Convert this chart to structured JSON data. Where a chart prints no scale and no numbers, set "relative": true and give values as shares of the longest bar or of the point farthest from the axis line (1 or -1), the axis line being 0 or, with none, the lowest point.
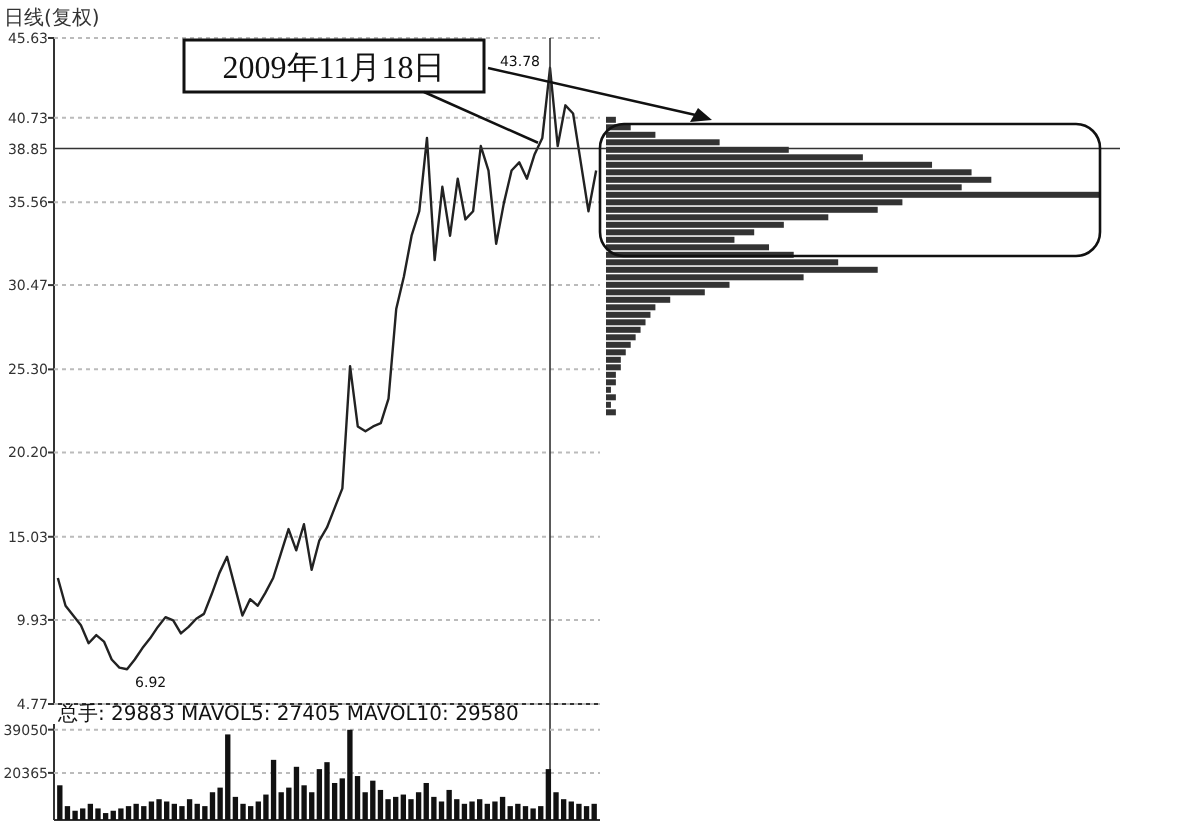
{
  "chart_data": [
    {
      "type": "line",
      "title": "日线(复权)",
      "categories": [
        null,
        null,
        null,
        null,
        null,
        null,
        null,
        null,
        null,
        null,
        null,
        null,
        null,
        null,
        null,
        null,
        null,
        null,
        null,
        null,
        null,
        null,
        null,
        null,
        null,
        null,
        null,
        null,
        null,
        null,
        null,
        null,
        null,
        null,
        null,
        null,
        null,
        null,
        null,
        null,
        null,
        null,
        null,
        null,
        null,
        null,
        null,
        null,
        null,
        null,
        null,
        null,
        null,
        null,
        null,
        null,
        null,
        null,
        null,
        null,
        null,
        null,
        null,
        null,
        null,
        null,
        null,
        null,
        null,
        null,
        null
      ],
      "series": [
        {
          "color": "#222222",
          "values": [
            12.5,
            10.8,
            10.2,
            9.6,
            8.5,
            9.0,
            8.6,
            7.5,
            7.0,
            6.9,
            7.5,
            8.2,
            8.8,
            9.5,
            10.1,
            9.9,
            9.1,
            9.5,
            10.0,
            10.3,
            11.5,
            12.8,
            13.8,
            12.0,
            10.2,
            11.2,
            10.8,
            11.6,
            12.5,
            14.0,
            15.5,
            14.2,
            15.8,
            13.0,
            14.8,
            15.6,
            16.8,
            18.0,
            25.5,
            21.8,
            21.5,
            21.8,
            22.0,
            23.5,
            29.0,
            31.0,
            33.5,
            35.0,
            39.5,
            32.0,
            36.5,
            33.5,
            37.0,
            34.5,
            35.0,
            39.0,
            37.5,
            33.0,
            35.5,
            37.5,
            38.0,
            37.0,
            38.5,
            39.5,
            43.8,
            39.0,
            41.5,
            41.0,
            38.0,
            35.0,
            37.5
          ]
        }
      ],
      "ylim": [
        4.77,
        45.63
      ],
      "yticks": [
        4.77,
        9.93,
        15.03,
        {
          "value": 20.2,
          "label": "20.20"
        },
        {
          "value": 25.3,
          "label": "25.30"
        },
        30.47,
        35.56,
        40.73,
        45.63
      ],
      "grid": "y",
      "ref_lines": [
        {
          "axis": "y",
          "value": 38.85,
          "label": "38.85"
        }
      ],
      "annotations": [
        "43.78",
        "6.92",
        "2009年11月18日"
      ]
    },
    {
      "type": "bar",
      "orientation": "horizontal",
      "relative": true,
      "color": "#333333",
      "categories": [
        null,
        null,
        null,
        null,
        null,
        null,
        null,
        null,
        null,
        null,
        null,
        null,
        null,
        null,
        null,
        null,
        null,
        null,
        null,
        null,
        null,
        null,
        null,
        null,
        null,
        null,
        null,
        null,
        null,
        null,
        null,
        null,
        null,
        null,
        null,
        null,
        null,
        null,
        null,
        null
      ],
      "values": [
        0.02,
        0.05,
        0.1,
        0.23,
        0.37,
        0.52,
        0.66,
        0.74,
        0.78,
        0.72,
        1.0,
        0.6,
        0.55,
        0.45,
        0.36,
        0.3,
        0.26,
        0.33,
        0.38,
        0.47,
        0.55,
        0.4,
        0.25,
        0.2,
        0.13,
        0.1,
        0.09,
        0.08,
        0.07,
        0.06,
        0.05,
        0.04,
        0.03,
        0.03,
        0.02,
        0.02,
        0.01,
        0.02,
        0.01,
        0.02
      ]
    },
    {
      "type": "bar",
      "color": "#111111",
      "categories": [
        null,
        null,
        null,
        null,
        null,
        null,
        null,
        null,
        null,
        null,
        null,
        null,
        null,
        null,
        null,
        null,
        null,
        null,
        null,
        null,
        null,
        null,
        null,
        null,
        null,
        null,
        null,
        null,
        null,
        null,
        null,
        null,
        null,
        null,
        null,
        null,
        null,
        null,
        null,
        null,
        null,
        null,
        null,
        null,
        null,
        null,
        null,
        null,
        null,
        null,
        null,
        null,
        null,
        null,
        null,
        null,
        null,
        null,
        null,
        null,
        null,
        null,
        null,
        null,
        null,
        null,
        null,
        null,
        null,
        null,
        null
      ],
      "values": [
        15000,
        6000,
        4000,
        5000,
        7000,
        5000,
        3000,
        4000,
        5000,
        6000,
        7000,
        6000,
        8000,
        9000,
        8000,
        7000,
        6000,
        9000,
        7000,
        6000,
        12000,
        14000,
        37000,
        10000,
        7000,
        6000,
        8000,
        11000,
        26000,
        12000,
        14000,
        23000,
        15000,
        12000,
        22000,
        25000,
        16000,
        18000,
        39000,
        19000,
        12000,
        17000,
        13000,
        9000,
        10000,
        11000,
        9000,
        12000,
        16000,
        10000,
        8000,
        13000,
        9000,
        7000,
        8000,
        9000,
        7000,
        8000,
        10000,
        6000,
        7000,
        6000,
        5000,
        6000,
        22000,
        12000,
        9000,
        8000,
        7000,
        6000,
        7000
      ],
      "ylim": [
        0,
        41500
      ],
      "yticks": [
        20365,
        39050
      ],
      "grid": "y",
      "annotations": [
        "总手: 29883 MAVOL5: 27405 MAVOL10: 29580"
      ]
    }
  ]
}
